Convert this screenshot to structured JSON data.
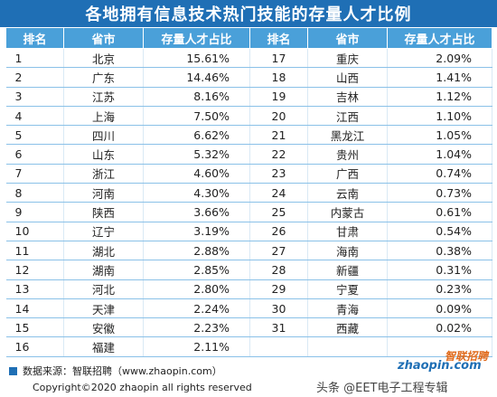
{
  "title": "各地拥有信息技术热门技能的存量人才比例",
  "headers": {
    "rank": "排名",
    "province": "省市",
    "ratio": "存量人才占比"
  },
  "left_rows": [
    {
      "rank": "1",
      "province": "北京",
      "ratio": "15.61%"
    },
    {
      "rank": "2",
      "province": "广东",
      "ratio": "14.46%"
    },
    {
      "rank": "3",
      "province": "江苏",
      "ratio": "8.16%"
    },
    {
      "rank": "4",
      "province": "上海",
      "ratio": "7.50%"
    },
    {
      "rank": "5",
      "province": "四川",
      "ratio": "6.62%"
    },
    {
      "rank": "6",
      "province": "山东",
      "ratio": "5.32%"
    },
    {
      "rank": "7",
      "province": "浙江",
      "ratio": "4.60%"
    },
    {
      "rank": "8",
      "province": "河南",
      "ratio": "4.30%"
    },
    {
      "rank": "9",
      "province": "陕西",
      "ratio": "3.66%"
    },
    {
      "rank": "10",
      "province": "辽宁",
      "ratio": "3.19%"
    },
    {
      "rank": "11",
      "province": "湖北",
      "ratio": "2.88%"
    },
    {
      "rank": "12",
      "province": "湖南",
      "ratio": "2.85%"
    },
    {
      "rank": "13",
      "province": "河北",
      "ratio": "2.80%"
    },
    {
      "rank": "14",
      "province": "天津",
      "ratio": "2.24%"
    },
    {
      "rank": "15",
      "province": "安徽",
      "ratio": "2.23%"
    },
    {
      "rank": "16",
      "province": "福建",
      "ratio": "2.11%"
    }
  ],
  "right_rows": [
    {
      "rank": "17",
      "province": "重庆",
      "ratio": "2.09%"
    },
    {
      "rank": "18",
      "province": "山西",
      "ratio": "1.41%"
    },
    {
      "rank": "19",
      "province": "吉林",
      "ratio": "1.12%"
    },
    {
      "rank": "20",
      "province": "江西",
      "ratio": "1.10%"
    },
    {
      "rank": "21",
      "province": "黑龙江",
      "ratio": "1.05%"
    },
    {
      "rank": "22",
      "province": "贵州",
      "ratio": "1.04%"
    },
    {
      "rank": "23",
      "province": "广西",
      "ratio": "0.74%"
    },
    {
      "rank": "24",
      "province": "云南",
      "ratio": "0.73%"
    },
    {
      "rank": "25",
      "province": "内蒙古",
      "ratio": "0.61%"
    },
    {
      "rank": "26",
      "province": "甘肃",
      "ratio": "0.54%"
    },
    {
      "rank": "27",
      "province": "海南",
      "ratio": "0.38%"
    },
    {
      "rank": "28",
      "province": "新疆",
      "ratio": "0.31%"
    },
    {
      "rank": "29",
      "province": "宁夏",
      "ratio": "0.23%"
    },
    {
      "rank": "30",
      "province": "青海",
      "ratio": "0.09%"
    },
    {
      "rank": "31",
      "province": "西藏",
      "ratio": "0.02%"
    },
    {
      "rank": "",
      "province": "",
      "ratio": ""
    }
  ],
  "footer": {
    "source": "数据来源：智联招聘（www.zhaopin.com）",
    "copyright": "Copyright©2020 zhaopin all rights reserved"
  },
  "logo": {
    "top": "智联招聘",
    "bottom": "zhaopin.com"
  },
  "watermark": "头条 @EET电子工程专辑",
  "colors": {
    "title_bg": "#1f6fb5",
    "header_bg": "#4aa0d9",
    "row_line": "#8ac1e8"
  }
}
